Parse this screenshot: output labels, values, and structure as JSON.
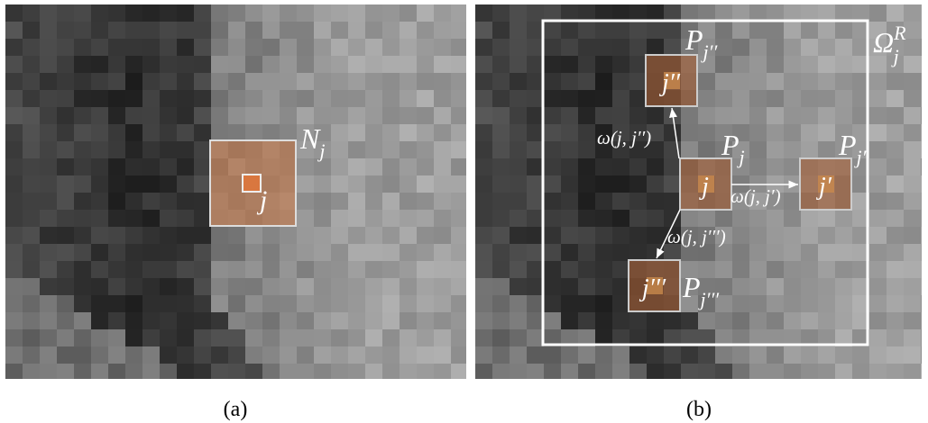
{
  "panel_a": {
    "caption": "(a)",
    "neighborhood_label": {
      "base": "N",
      "sub": "j"
    },
    "center_label": "j"
  },
  "panel_b": {
    "caption": "(b)",
    "search_window_label": {
      "base": "Ω",
      "sub": "j",
      "sup": "R"
    },
    "patches": [
      {
        "center_label": "j",
        "patch_label": {
          "base": "P",
          "sub": "j"
        }
      },
      {
        "center_label": "j′′",
        "patch_label": {
          "base": "P",
          "sub": "j′′"
        }
      },
      {
        "center_label": "j′",
        "patch_label": {
          "base": "P",
          "sub": "j′"
        }
      },
      {
        "center_label": "j′′′",
        "patch_label": {
          "base": "P",
          "sub": "j′′′"
        }
      }
    ],
    "weights": [
      "ω(j, j′′)",
      "ω(j, j′)",
      "ω(j, j′′′)"
    ]
  }
}
